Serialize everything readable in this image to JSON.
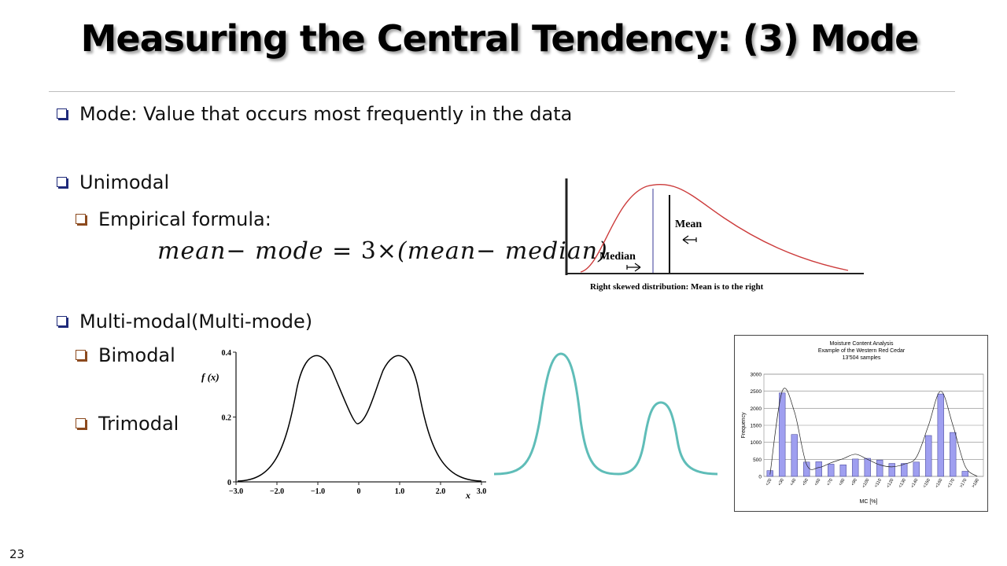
{
  "slide": {
    "title": "Measuring the Central Tendency: (3) Mode",
    "page_number": "23",
    "bullets": {
      "mode_def": "Mode: Value that occurs most frequently in the data",
      "unimodal": "Unimodal",
      "empirical": "Empirical formula:",
      "multimodal": "Multi-modal(Multi-mode)",
      "bimodal": "Bimodal",
      "trimodal": "Trimodal"
    },
    "formula": {
      "p1": "mean",
      "p2": "− mode",
      "p3": "=",
      "p4": "3",
      "p5": "×",
      "p6": "(mean",
      "p7": "− median)"
    }
  },
  "skew_figure": {
    "median_label": "Median",
    "mean_label": "Mean",
    "caption": "Right skewed distribution: Mean is to the right",
    "curve_color": "#cc3b3b"
  },
  "bimodal_figure": {
    "y_axis_label": "f (x)",
    "x_axis_label": "x",
    "y_ticks": [
      "0",
      "0.2",
      "0.4"
    ],
    "x_ticks": [
      "−3.0",
      "−2.0",
      "−1.0",
      "0",
      "1.0",
      "2.0",
      "3.0"
    ]
  },
  "teal_figure": {
    "curve_color": "#5fbdb8"
  },
  "chart_data": {
    "type": "bar",
    "title": "Moisture Content Analysis",
    "subtitle": "Example of the Western Red Cedar",
    "note": "13'504 samples",
    "xlabel": "MC [%]",
    "ylabel": "Frequency",
    "ylim": [
      0,
      3000
    ],
    "yticks": [
      0,
      500,
      1000,
      1500,
      2000,
      2500,
      3000
    ],
    "grid": true,
    "bar_color": "#9f9ff0",
    "categories": [
      "<20",
      "<30",
      "<40",
      "<50",
      "<60",
      "<70",
      "<80",
      "<90",
      "<100",
      "<110",
      "<120",
      "<130",
      "<140",
      "<150",
      "<160",
      "<170",
      ">170",
      ">180"
    ],
    "values": [
      170,
      2450,
      1230,
      420,
      430,
      360,
      340,
      510,
      530,
      480,
      380,
      380,
      420,
      1200,
      2420,
      1290,
      150,
      0
    ],
    "fit_curve": [
      50,
      2500,
      1900,
      350,
      260,
      400,
      520,
      650,
      500,
      340,
      280,
      360,
      560,
      1500,
      2500,
      1500,
      300,
      0
    ]
  }
}
